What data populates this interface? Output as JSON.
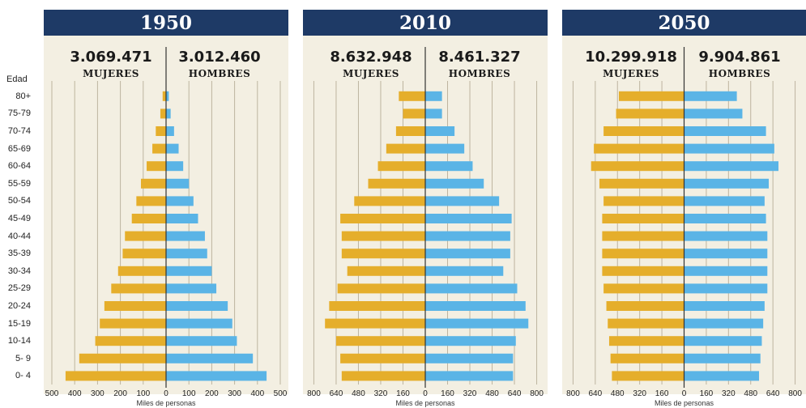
{
  "age_header": "Edad",
  "colors": {
    "header": "#1e3a66",
    "women": "#e5ae2b",
    "men": "#5ab4e6",
    "background": "#f3efe2",
    "gridline": "#bdb49f",
    "center_line": "#333333"
  },
  "chart_data": [
    {
      "type": "bar",
      "orientation": "horizontal-pyramid",
      "title": "1950",
      "categories": [
        "0- 4",
        "5- 9",
        "10-14",
        "15-19",
        "20-24",
        "25-29",
        "30-34",
        "35-39",
        "40-44",
        "45-49",
        "50-54",
        "55-59",
        "60-64",
        "65-69",
        "70-74",
        "75-79",
        "80+"
      ],
      "series": [
        {
          "name": "MUJERES",
          "total": "3.069.471",
          "values": [
            440,
            380,
            310,
            290,
            270,
            240,
            210,
            190,
            180,
            150,
            130,
            110,
            85,
            60,
            45,
            25,
            15
          ]
        },
        {
          "name": "HOMBRES",
          "total": "3.012.460",
          "values": [
            440,
            380,
            310,
            290,
            270,
            220,
            200,
            180,
            170,
            140,
            120,
            100,
            75,
            55,
            35,
            20,
            12
          ]
        }
      ],
      "xlim": [
        -500,
        500
      ],
      "ticks": [
        500,
        400,
        300,
        200,
        100,
        0,
        100,
        200,
        300,
        400,
        500
      ],
      "tick_values": [
        -500,
        -400,
        -300,
        -200,
        -100,
        0,
        100,
        200,
        300,
        400,
        500
      ],
      "xlabel": "Miles de personas"
    },
    {
      "type": "bar",
      "orientation": "horizontal-pyramid",
      "title": "2010",
      "categories": [
        "0- 4",
        "5- 9",
        "10-14",
        "15-19",
        "20-24",
        "25-29",
        "30-34",
        "35-39",
        "40-44",
        "45-49",
        "50-54",
        "55-59",
        "60-64",
        "65-69",
        "70-74",
        "75-79",
        "80+"
      ],
      "series": [
        {
          "name": "MUJERES",
          "total": "8.632.948",
          "values": [
            600,
            610,
            640,
            720,
            690,
            630,
            560,
            600,
            600,
            610,
            510,
            410,
            340,
            280,
            210,
            160,
            190
          ]
        },
        {
          "name": "HOMBRES",
          "total": "8.461.327",
          "values": [
            630,
            630,
            650,
            740,
            720,
            660,
            560,
            610,
            610,
            620,
            530,
            420,
            340,
            280,
            210,
            120,
            120
          ]
        }
      ],
      "xlim": [
        -820,
        820
      ],
      "ticks": [
        800,
        640,
        480,
        320,
        160,
        0,
        160,
        320,
        480,
        640,
        800
      ],
      "tick_values": [
        -800,
        -640,
        -480,
        -320,
        -160,
        0,
        160,
        320,
        480,
        640,
        800
      ],
      "xlabel": "Miles de personas"
    },
    {
      "type": "bar",
      "orientation": "horizontal-pyramid",
      "title": "2050",
      "categories": [
        "0- 4",
        "5- 9",
        "10-14",
        "15-19",
        "20-24",
        "25-29",
        "30-34",
        "35-39",
        "40-44",
        "45-49",
        "50-54",
        "55-59",
        "60-64",
        "65-69",
        "70-74",
        "75-79",
        "80+"
      ],
      "series": [
        {
          "name": "MUJERES",
          "total": "10.299.918",
          "values": [
            520,
            530,
            540,
            550,
            560,
            580,
            590,
            590,
            590,
            590,
            580,
            610,
            670,
            650,
            580,
            490,
            470
          ]
        },
        {
          "name": "HOMBRES",
          "total": "9.904.861",
          "values": [
            540,
            550,
            560,
            570,
            580,
            600,
            600,
            600,
            600,
            590,
            580,
            610,
            680,
            650,
            590,
            420,
            380
          ]
        }
      ],
      "xlim": [
        -820,
        820
      ],
      "ticks": [
        800,
        640,
        480,
        320,
        160,
        0,
        160,
        320,
        480,
        640,
        800
      ],
      "tick_values": [
        -800,
        -640,
        -480,
        -320,
        -160,
        0,
        160,
        320,
        480,
        640,
        800
      ],
      "xlabel": "Miles de personas"
    }
  ]
}
